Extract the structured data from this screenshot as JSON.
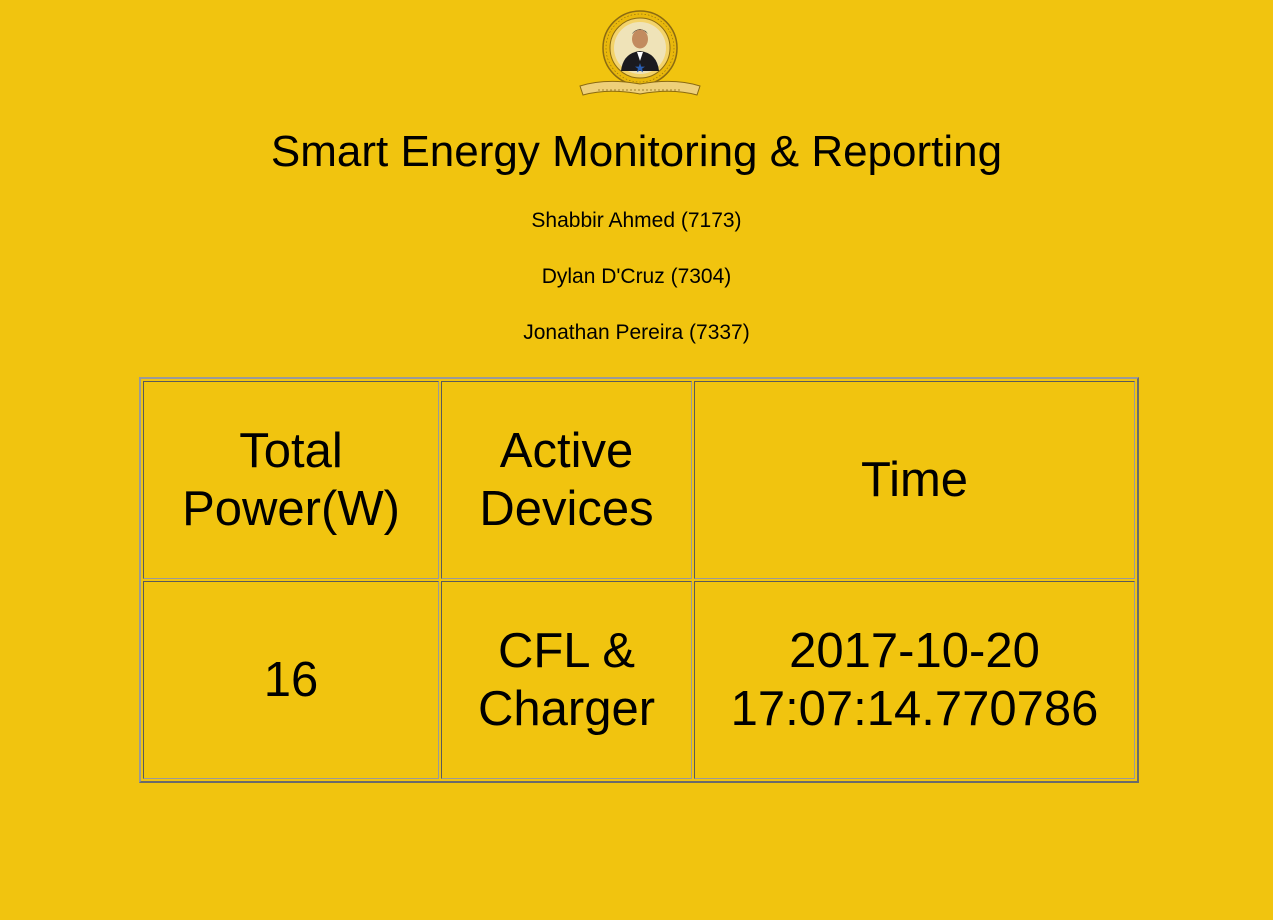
{
  "header": {
    "title": "Smart Energy Monitoring & Reporting",
    "logo_icon": "college-crest-logo"
  },
  "members": [
    "Shabbir Ahmed (7173)",
    "Dylan D'Cruz (7304)",
    "Jonathan Pereira (7337)"
  ],
  "table": {
    "headers": {
      "power": "Total Power(W)",
      "devices": "Active Devices",
      "time": "Time"
    },
    "rows": [
      {
        "power": "16",
        "devices": "CFL & Charger",
        "time": "2017-10-20 17:07:14.770786"
      }
    ]
  },
  "colors": {
    "background": "#F1C40F",
    "text": "#000000",
    "border": "#5a5a5a"
  }
}
